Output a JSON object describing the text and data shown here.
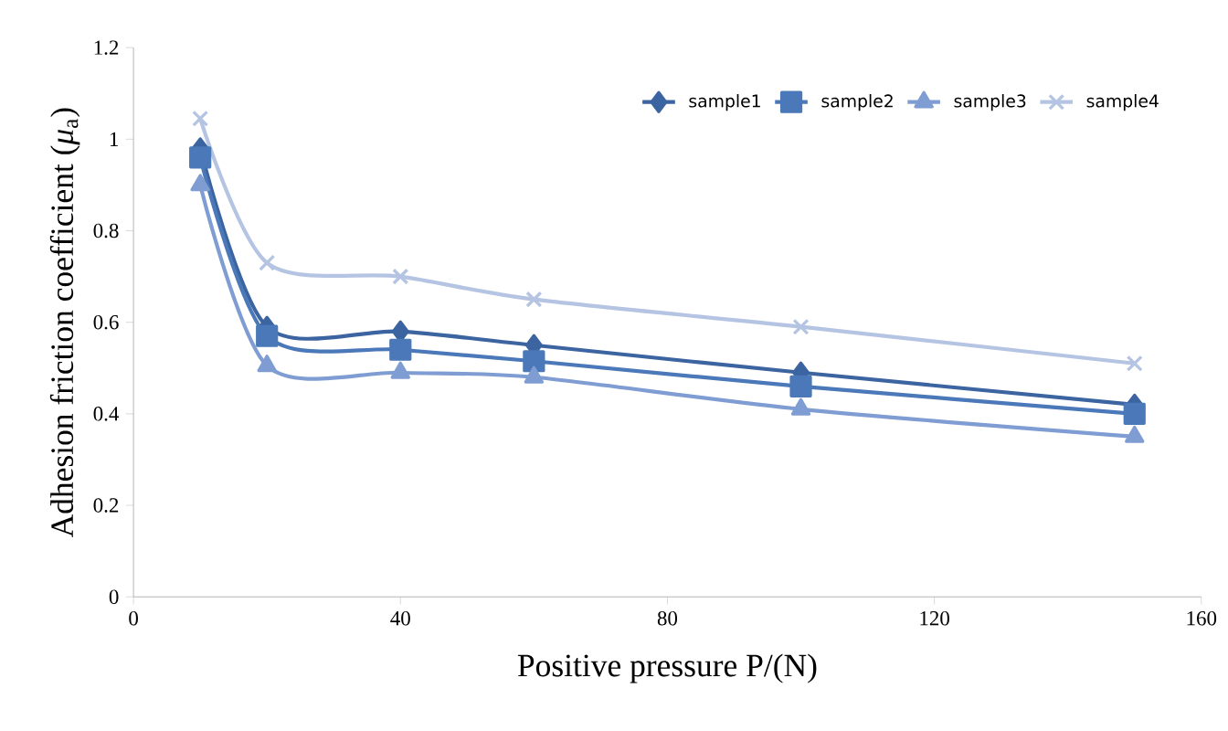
{
  "chart_data": {
    "type": "line",
    "xlabel": "Positive pressure P/(N)",
    "ylabel": "Adhesion friction coefficient (*μ*$_{a}$)",
    "xlim": [
      0,
      160
    ],
    "xticks": [
      0,
      40,
      80,
      120,
      160
    ],
    "ylim": [
      0,
      1.2
    ],
    "yticks": [
      0,
      0.2,
      0.4,
      0.6,
      0.8,
      1,
      1.2
    ],
    "x": [
      10,
      20,
      40,
      60,
      100,
      150
    ],
    "grid": false,
    "legend": "top right",
    "series": [
      {
        "name": "sample1",
        "color": "#3b64a0",
        "marker": "diamond",
        "values": [
          0.98,
          0.59,
          0.58,
          0.55,
          0.49,
          0.42
        ]
      },
      {
        "name": "sample2",
        "color": "#4a78b8",
        "marker": "square",
        "values": [
          0.96,
          0.57,
          0.54,
          0.515,
          0.46,
          0.4
        ]
      },
      {
        "name": "sample3",
        "color": "#7f9dd2",
        "marker": "triangle",
        "values": [
          0.9,
          0.505,
          0.49,
          0.48,
          0.41,
          0.35
        ]
      },
      {
        "name": "sample4",
        "color": "#b4c4e2",
        "marker": "cross",
        "values": [
          1.045,
          0.73,
          0.7,
          0.65,
          0.59,
          0.51
        ]
      }
    ]
  }
}
